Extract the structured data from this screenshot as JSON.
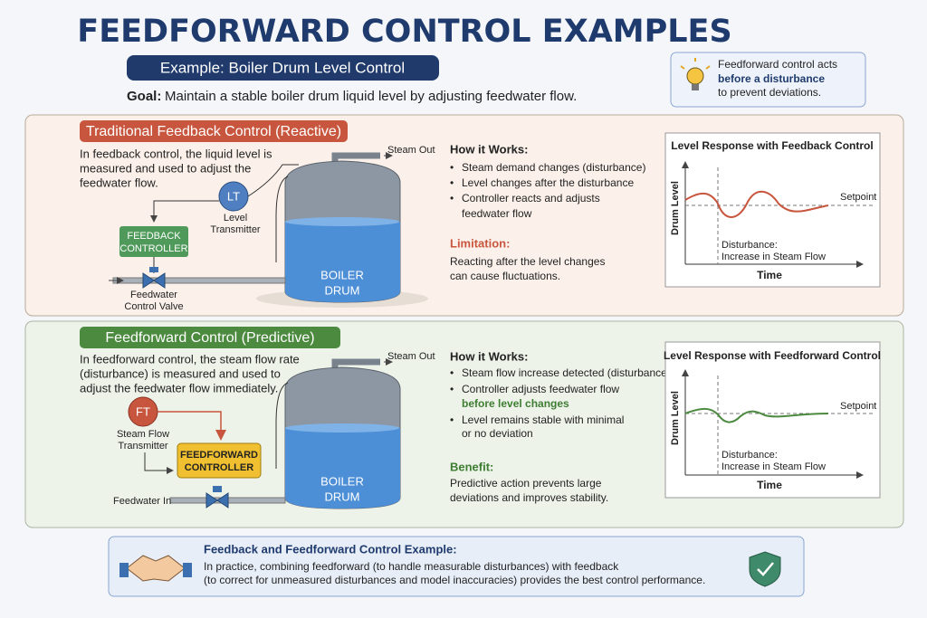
{
  "header": {
    "title": "FEEDFORWARD CONTROL EXAMPLES",
    "example": "Example: Boiler Drum Level Control",
    "goal_label": "Goal:",
    "goal": "Maintain a stable boiler drum liquid level by adjusting feedwater flow."
  },
  "tip": {
    "lines": [
      "Feedforward control acts",
      "before a disturbance",
      "to prevent deviations."
    ]
  },
  "feedback": {
    "title": "Traditional Feedback Control (Reactive)",
    "description": [
      "In feedback control, the liquid level is",
      "measured and used to adjust the",
      "feedwater flow."
    ],
    "diagram": {
      "steam_out": "Steam Out",
      "transmitter": "LT",
      "transmitter_label": [
        "Level",
        "Transmitter"
      ],
      "controller": [
        "FEEDBACK",
        "CONTROLLER"
      ],
      "valve_label": [
        "Feedwater",
        "Control Valve"
      ],
      "drum": [
        "BOILER",
        "DRUM"
      ]
    },
    "how_title": "How it Works:",
    "bullets": [
      [
        "Steam demand changes (disturbance)"
      ],
      [
        "Level changes after the disturbance"
      ],
      [
        "Controller reacts and adjusts",
        "feedwater flow"
      ]
    ],
    "note_title": "Limitation:",
    "note": [
      "Reacting after the level changes",
      "can cause fluctuations."
    ],
    "chart": {
      "title": "Level Response with Feedback Control",
      "y_label": "Drum Level",
      "x_label": "Time",
      "setpoint": "Setpoint",
      "disturbance": [
        "Disturbance:",
        "Increase in Steam Flow"
      ]
    }
  },
  "feedforward": {
    "title": "Feedforward Control (Predictive)",
    "description": [
      "In feedforward control, the steam flow rate",
      "(disturbance) is measured and used to",
      "adjust the feedwater flow immediately."
    ],
    "diagram": {
      "steam_out": "Steam Out",
      "transmitter": "FT",
      "transmitter_label": [
        "Steam Flow",
        "Transmitter"
      ],
      "controller": [
        "FEEDFORWARD",
        "CONTROLLER"
      ],
      "valve_label": [
        "Feedwater In"
      ],
      "drum": [
        "BOILER",
        "DRUM"
      ]
    },
    "how_title": "How it Works:",
    "bullets": [
      [
        "Steam flow increase detected (disturbance)"
      ],
      [
        "Controller adjusts feedwater flow",
        "before level changes"
      ],
      [
        "Level remains stable with minimal",
        "or no deviation"
      ]
    ],
    "note_title": "Benefit:",
    "note": [
      "Predictive action prevents large",
      "deviations and improves stability."
    ],
    "chart": {
      "title": "Level Response with Feedforward Control",
      "y_label": "Drum Level",
      "x_label": "Time",
      "setpoint": "Setpoint",
      "disturbance": [
        "Disturbance:",
        "Increase in Steam Flow"
      ]
    }
  },
  "footer": {
    "title": "Feedback and Feedforward Control Example:",
    "lines": [
      "In practice, combining feedforward (to handle measurable disturbances) with feedback",
      "(to correct for unmeasured disturbances and model inaccuracies) provides the best control performance."
    ]
  }
}
